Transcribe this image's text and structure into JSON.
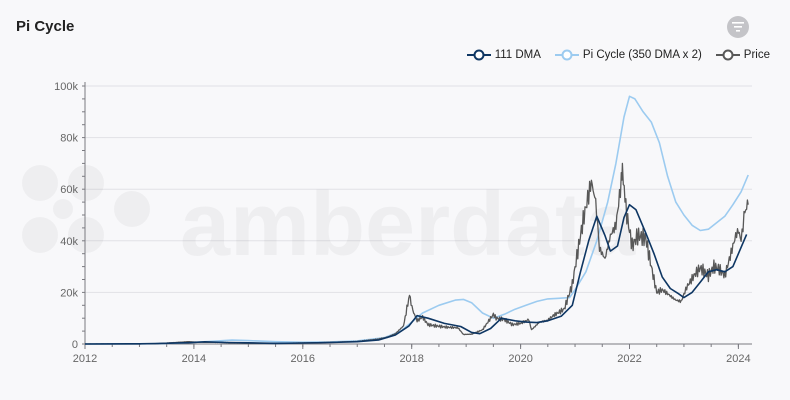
{
  "header": {
    "title": "Pi Cycle"
  },
  "icons": {
    "filter": "filter-icon"
  },
  "watermark": "amberdata",
  "colors": {
    "dma111": "#0e3663",
    "pi": "#9ccbf0",
    "price": "#585858",
    "grid": "#e1e1e6",
    "axis": "#7a7a80"
  },
  "chart_data": {
    "type": "line",
    "title": "Pi Cycle",
    "xlabel": "",
    "ylabel": "",
    "xlim": [
      2012,
      2024.25
    ],
    "ylim": [
      0,
      100000
    ],
    "xticks": [
      "2012",
      "2014",
      "2016",
      "2018",
      "2020",
      "2022",
      "2024"
    ],
    "yticks": [
      "0",
      "20k",
      "40k",
      "60k",
      "80k",
      "100k"
    ],
    "legend_position": "top-right",
    "grid": true,
    "series": [
      {
        "name": "111 DMA",
        "key": "dma111",
        "points": [
          [
            2012.0,
            0
          ],
          [
            2013.0,
            60
          ],
          [
            2013.3,
            150
          ],
          [
            2013.9,
            500
          ],
          [
            2014.2,
            850
          ],
          [
            2014.6,
            600
          ],
          [
            2015.0,
            450
          ],
          [
            2015.5,
            250
          ],
          [
            2016.0,
            400
          ],
          [
            2016.5,
            600
          ],
          [
            2017.0,
            900
          ],
          [
            2017.4,
            1600
          ],
          [
            2017.7,
            3500
          ],
          [
            2017.95,
            7000
          ],
          [
            2018.1,
            11000
          ],
          [
            2018.3,
            10000
          ],
          [
            2018.6,
            8000
          ],
          [
            2018.9,
            6800
          ],
          [
            2019.1,
            4500
          ],
          [
            2019.25,
            4000
          ],
          [
            2019.45,
            6000
          ],
          [
            2019.65,
            10000
          ],
          [
            2019.9,
            9000
          ],
          [
            2020.1,
            8500
          ],
          [
            2020.3,
            8300
          ],
          [
            2020.5,
            9000
          ],
          [
            2020.75,
            10800
          ],
          [
            2020.95,
            15000
          ],
          [
            2021.1,
            28000
          ],
          [
            2021.25,
            40000
          ],
          [
            2021.4,
            49500
          ],
          [
            2021.55,
            42000
          ],
          [
            2021.65,
            36000
          ],
          [
            2021.78,
            38000
          ],
          [
            2021.9,
            49000
          ],
          [
            2022.0,
            54000
          ],
          [
            2022.12,
            52000
          ],
          [
            2022.3,
            43000
          ],
          [
            2022.45,
            35000
          ],
          [
            2022.6,
            26000
          ],
          [
            2022.75,
            21500
          ],
          [
            2022.9,
            19500
          ],
          [
            2023.0,
            18000
          ],
          [
            2023.15,
            20000
          ],
          [
            2023.3,
            24000
          ],
          [
            2023.45,
            28000
          ],
          [
            2023.6,
            28800
          ],
          [
            2023.75,
            28000
          ],
          [
            2023.9,
            30000
          ],
          [
            2024.0,
            35000
          ],
          [
            2024.15,
            42500
          ]
        ]
      },
      {
        "name": "Pi Cycle (350 DMA x 2)",
        "key": "pi",
        "points": [
          [
            2012.0,
            0
          ],
          [
            2013.3,
            100
          ],
          [
            2013.9,
            500
          ],
          [
            2014.3,
            1000
          ],
          [
            2014.7,
            1500
          ],
          [
            2015.0,
            1300
          ],
          [
            2015.5,
            900
          ],
          [
            2016.0,
            700
          ],
          [
            2016.5,
            800
          ],
          [
            2017.0,
            1200
          ],
          [
            2017.5,
            2500
          ],
          [
            2017.8,
            5000
          ],
          [
            2018.0,
            8500
          ],
          [
            2018.2,
            12000
          ],
          [
            2018.5,
            15000
          ],
          [
            2018.8,
            17000
          ],
          [
            2018.95,
            17300
          ],
          [
            2019.1,
            16000
          ],
          [
            2019.3,
            12000
          ],
          [
            2019.5,
            10000
          ],
          [
            2019.7,
            11500
          ],
          [
            2019.9,
            13500
          ],
          [
            2020.1,
            15000
          ],
          [
            2020.3,
            16500
          ],
          [
            2020.5,
            17500
          ],
          [
            2020.7,
            17700
          ],
          [
            2020.9,
            18000
          ],
          [
            2021.0,
            21000
          ],
          [
            2021.2,
            28000
          ],
          [
            2021.4,
            40000
          ],
          [
            2021.6,
            55000
          ],
          [
            2021.75,
            70000
          ],
          [
            2021.9,
            88000
          ],
          [
            2022.0,
            96000
          ],
          [
            2022.1,
            95000
          ],
          [
            2022.25,
            90000
          ],
          [
            2022.4,
            86000
          ],
          [
            2022.55,
            78000
          ],
          [
            2022.7,
            65000
          ],
          [
            2022.85,
            55000
          ],
          [
            2023.0,
            50000
          ],
          [
            2023.15,
            46000
          ],
          [
            2023.3,
            44000
          ],
          [
            2023.45,
            44500
          ],
          [
            2023.6,
            47000
          ],
          [
            2023.75,
            49500
          ],
          [
            2023.9,
            54000
          ],
          [
            2024.05,
            59000
          ],
          [
            2024.18,
            65500
          ]
        ]
      },
      {
        "name": "Price",
        "key": "price",
        "points": [
          [
            2012.0,
            5
          ],
          [
            2013.0,
            15
          ],
          [
            2013.3,
            100
          ],
          [
            2013.9,
            900
          ],
          [
            2014.1,
            700
          ],
          [
            2014.5,
            600
          ],
          [
            2015.0,
            250
          ],
          [
            2015.5,
            250
          ],
          [
            2016.0,
            400
          ],
          [
            2016.5,
            650
          ],
          [
            2017.0,
            1000
          ],
          [
            2017.35,
            1800
          ],
          [
            2017.55,
            2600
          ],
          [
            2017.7,
            4000
          ],
          [
            2017.85,
            7000
          ],
          [
            2017.96,
            19000
          ],
          [
            2018.02,
            13000
          ],
          [
            2018.1,
            9000
          ],
          [
            2018.2,
            10500
          ],
          [
            2018.3,
            7500
          ],
          [
            2018.45,
            7000
          ],
          [
            2018.65,
            6500
          ],
          [
            2018.85,
            6300
          ],
          [
            2018.95,
            3700
          ],
          [
            2019.1,
            3800
          ],
          [
            2019.3,
            5500
          ],
          [
            2019.5,
            11500
          ],
          [
            2019.55,
            10000
          ],
          [
            2019.7,
            9500
          ],
          [
            2019.85,
            7500
          ],
          [
            2020.0,
            8000
          ],
          [
            2020.15,
            9500
          ],
          [
            2020.2,
            5500
          ],
          [
            2020.35,
            8500
          ],
          [
            2020.5,
            9200
          ],
          [
            2020.6,
            11000
          ],
          [
            2020.8,
            13500
          ],
          [
            2020.95,
            23000
          ],
          [
            2021.05,
            36000
          ],
          [
            2021.15,
            48000
          ],
          [
            2021.25,
            58000
          ],
          [
            2021.3,
            63000
          ],
          [
            2021.38,
            55000
          ],
          [
            2021.45,
            37000
          ],
          [
            2021.55,
            33000
          ],
          [
            2021.65,
            42000
          ],
          [
            2021.75,
            46000
          ],
          [
            2021.85,
            63000
          ],
          [
            2021.87,
            67000
          ],
          [
            2021.95,
            50000
          ],
          [
            2022.05,
            38000
          ],
          [
            2022.15,
            42000
          ],
          [
            2022.3,
            41000
          ],
          [
            2022.4,
            30000
          ],
          [
            2022.5,
            20000
          ],
          [
            2022.6,
            21000
          ],
          [
            2022.7,
            19500
          ],
          [
            2022.85,
            17000
          ],
          [
            2022.95,
            16500
          ],
          [
            2023.05,
            22000
          ],
          [
            2023.2,
            27000
          ],
          [
            2023.3,
            29500
          ],
          [
            2023.45,
            26500
          ],
          [
            2023.55,
            30000
          ],
          [
            2023.65,
            29000
          ],
          [
            2023.75,
            26500
          ],
          [
            2023.85,
            34000
          ],
          [
            2023.95,
            42000
          ],
          [
            2024.0,
            44000
          ],
          [
            2024.05,
            40000
          ],
          [
            2024.12,
            52000
          ],
          [
            2024.18,
            54000
          ]
        ]
      }
    ]
  }
}
